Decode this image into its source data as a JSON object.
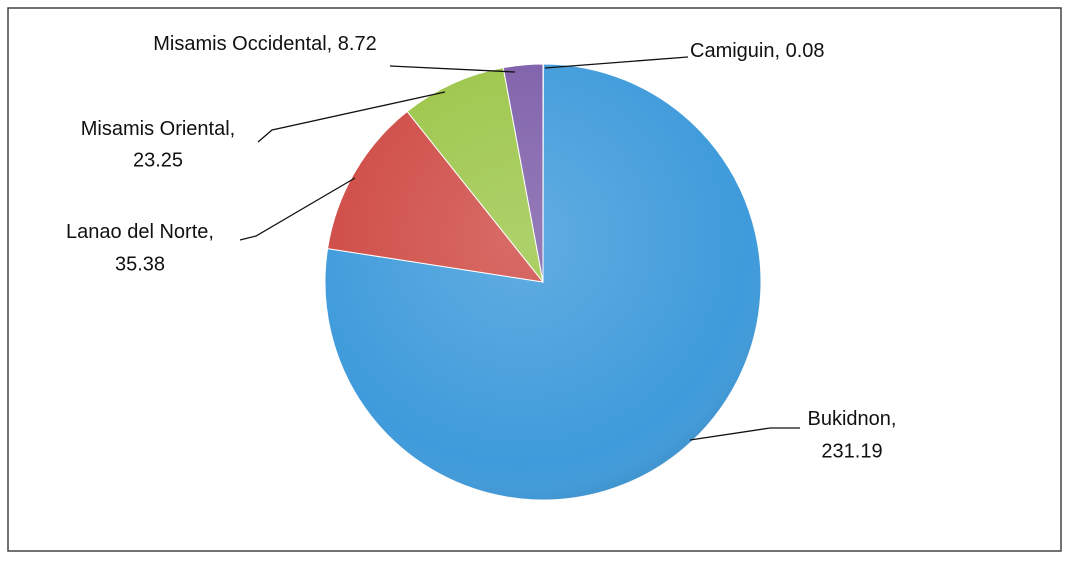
{
  "chart_data": {
    "type": "pie",
    "categories": [
      "Camiguin",
      "Bukidnon",
      "Lanao del Norte",
      "Misamis Oriental",
      "Misamis Occidental"
    ],
    "values": [
      0.08,
      231.19,
      35.38,
      23.25,
      8.72
    ],
    "colors": [
      "#5b9bd5",
      "#3f9bdb",
      "#cf4b45",
      "#9cc649",
      "#7d5ea9"
    ],
    "label_separator": ","
  }
}
